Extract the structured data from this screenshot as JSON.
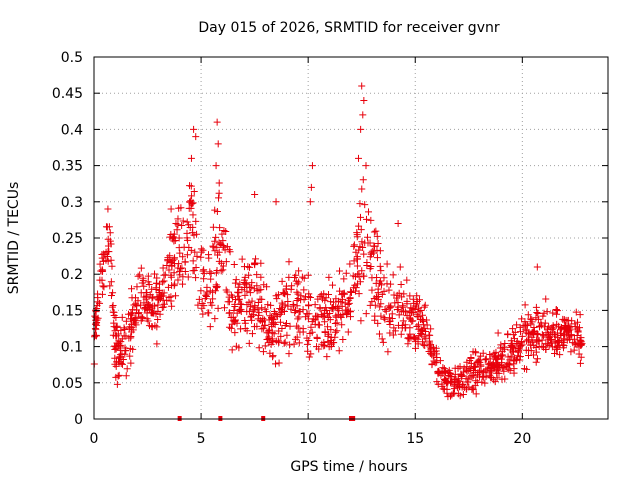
{
  "chart_data": {
    "type": "scatter",
    "title": "Day 015 of 2026, SRMTID for receiver gvnr",
    "xlabel": "GPS time / hours",
    "ylabel": "SRMTID / TECUs",
    "xlim": [
      0,
      24
    ],
    "ylim": [
      0,
      0.5
    ],
    "x_ticks": [
      0,
      5,
      10,
      15,
      20
    ],
    "y_ticks": [
      0,
      0.05,
      0.1,
      0.15,
      0.2,
      0.25,
      0.3,
      0.35,
      0.4,
      0.45,
      0.5
    ],
    "grid": true,
    "marker": "plus",
    "color": "#e8000b",
    "series": [
      {
        "name": "SRMTID",
        "envelope": [
          {
            "x": 0.0,
            "mean": 0.11,
            "spread": 0.03
          },
          {
            "x": 0.3,
            "mean": 0.19,
            "spread": 0.04
          },
          {
            "x": 0.7,
            "mean": 0.24,
            "spread": 0.05
          },
          {
            "x": 1.0,
            "mean": 0.1,
            "spread": 0.05
          },
          {
            "x": 1.5,
            "mean": 0.1,
            "spread": 0.05
          },
          {
            "x": 2.0,
            "mean": 0.16,
            "spread": 0.05
          },
          {
            "x": 3.0,
            "mean": 0.15,
            "spread": 0.05
          },
          {
            "x": 3.8,
            "mean": 0.22,
            "spread": 0.06
          },
          {
            "x": 4.6,
            "mean": 0.27,
            "spread": 0.08
          },
          {
            "x": 5.2,
            "mean": 0.16,
            "spread": 0.06
          },
          {
            "x": 5.9,
            "mean": 0.25,
            "spread": 0.09
          },
          {
            "x": 6.5,
            "mean": 0.15,
            "spread": 0.05
          },
          {
            "x": 7.5,
            "mean": 0.17,
            "spread": 0.07
          },
          {
            "x": 8.3,
            "mean": 0.12,
            "spread": 0.05
          },
          {
            "x": 9.0,
            "mean": 0.16,
            "spread": 0.06
          },
          {
            "x": 10.0,
            "mean": 0.14,
            "spread": 0.07
          },
          {
            "x": 11.0,
            "mean": 0.13,
            "spread": 0.05
          },
          {
            "x": 12.0,
            "mean": 0.18,
            "spread": 0.06
          },
          {
            "x": 12.6,
            "mean": 0.25,
            "spread": 0.09
          },
          {
            "x": 13.5,
            "mean": 0.16,
            "spread": 0.06
          },
          {
            "x": 14.5,
            "mean": 0.15,
            "spread": 0.05
          },
          {
            "x": 15.5,
            "mean": 0.12,
            "spread": 0.04
          },
          {
            "x": 16.2,
            "mean": 0.06,
            "spread": 0.02
          },
          {
            "x": 17.0,
            "mean": 0.05,
            "spread": 0.02
          },
          {
            "x": 18.0,
            "mean": 0.07,
            "spread": 0.03
          },
          {
            "x": 19.0,
            "mean": 0.08,
            "spread": 0.03
          },
          {
            "x": 20.0,
            "mean": 0.11,
            "spread": 0.04
          },
          {
            "x": 21.0,
            "mean": 0.12,
            "spread": 0.04
          },
          {
            "x": 22.0,
            "mean": 0.12,
            "spread": 0.03
          },
          {
            "x": 22.8,
            "mean": 0.11,
            "spread": 0.03
          }
        ],
        "peaks": [
          {
            "x": 4.65,
            "y": 0.4
          },
          {
            "x": 4.75,
            "y": 0.39
          },
          {
            "x": 4.55,
            "y": 0.36
          },
          {
            "x": 5.75,
            "y": 0.41
          },
          {
            "x": 5.8,
            "y": 0.38
          },
          {
            "x": 5.7,
            "y": 0.35
          },
          {
            "x": 10.2,
            "y": 0.35
          },
          {
            "x": 10.15,
            "y": 0.32
          },
          {
            "x": 10.1,
            "y": 0.3
          },
          {
            "x": 12.5,
            "y": 0.46
          },
          {
            "x": 12.6,
            "y": 0.44
          },
          {
            "x": 12.55,
            "y": 0.42
          },
          {
            "x": 12.45,
            "y": 0.4
          },
          {
            "x": 12.35,
            "y": 0.36
          },
          {
            "x": 12.7,
            "y": 0.35
          },
          {
            "x": 0.65,
            "y": 0.29
          },
          {
            "x": 7.5,
            "y": 0.31
          },
          {
            "x": 8.5,
            "y": 0.3
          },
          {
            "x": 3.6,
            "y": 0.29
          },
          {
            "x": 18.6,
            "y": 0.075
          },
          {
            "x": 17.6,
            "y": 0.085
          },
          {
            "x": 20.7,
            "y": 0.21
          },
          {
            "x": 14.2,
            "y": 0.27
          }
        ]
      }
    ],
    "zero_markers": [
      4.0,
      5.9,
      7.9,
      12.0,
      12.1
    ]
  }
}
